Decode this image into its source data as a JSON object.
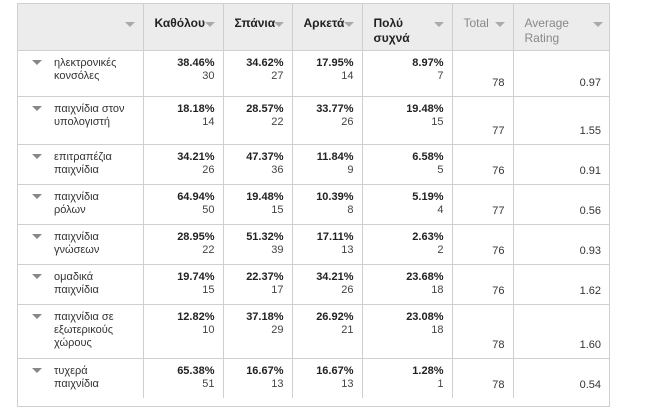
{
  "columns": [
    {
      "label": "",
      "bold": false
    },
    {
      "label": "Καθόλου",
      "bold": true
    },
    {
      "label": "Σπάνια",
      "bold": true
    },
    {
      "label": "Αρκετά",
      "bold": true
    },
    {
      "label": "Πολύ συχνά",
      "bold": true
    },
    {
      "label": "Total",
      "bold": false
    },
    {
      "label": "Average Rating",
      "bold": false
    }
  ],
  "rows": [
    {
      "label": "ηλεκτρονικές κονσόλες",
      "cells": [
        [
          "38.46%",
          "30"
        ],
        [
          "34.62%",
          "27"
        ],
        [
          "17.95%",
          "14"
        ],
        [
          "8.97%",
          "7"
        ]
      ],
      "total": "78",
      "rating": "0.97"
    },
    {
      "label": "παιχνίδια στον υπολογιστή",
      "cells": [
        [
          "18.18%",
          "14"
        ],
        [
          "28.57%",
          "22"
        ],
        [
          "33.77%",
          "26"
        ],
        [
          "19.48%",
          "15"
        ]
      ],
      "total": "77",
      "rating": "1.55"
    },
    {
      "label": "επιτραπέζια παιχνίδια",
      "cells": [
        [
          "34.21%",
          "26"
        ],
        [
          "47.37%",
          "36"
        ],
        [
          "11.84%",
          "9"
        ],
        [
          "6.58%",
          "5"
        ]
      ],
      "total": "76",
      "rating": "0.91"
    },
    {
      "label": "παιχνίδια ρόλων",
      "cells": [
        [
          "64.94%",
          "50"
        ],
        [
          "19.48%",
          "15"
        ],
        [
          "10.39%",
          "8"
        ],
        [
          "5.19%",
          "4"
        ]
      ],
      "total": "77",
      "rating": "0.56"
    },
    {
      "label": "παιχνίδια γνώσεων",
      "cells": [
        [
          "28.95%",
          "22"
        ],
        [
          "51.32%",
          "39"
        ],
        [
          "17.11%",
          "13"
        ],
        [
          "2.63%",
          "2"
        ]
      ],
      "total": "76",
      "rating": "0.93"
    },
    {
      "label": "ομαδικά παιχνίδια",
      "cells": [
        [
          "19.74%",
          "15"
        ],
        [
          "22.37%",
          "17"
        ],
        [
          "34.21%",
          "26"
        ],
        [
          "23.68%",
          "18"
        ]
      ],
      "total": "76",
      "rating": "1.62"
    },
    {
      "label": "παιχνίδια σε εξωτερικούς χώρους",
      "cells": [
        [
          "12.82%",
          "10"
        ],
        [
          "37.18%",
          "29"
        ],
        [
          "26.92%",
          "21"
        ],
        [
          "23.08%",
          "18"
        ]
      ],
      "total": "78",
      "rating": "1.60"
    },
    {
      "label": "τυχερά παιχνίδια",
      "cells": [
        [
          "65.38%",
          "51"
        ],
        [
          "16.67%",
          "13"
        ],
        [
          "16.67%",
          "13"
        ],
        [
          "1.28%",
          "1"
        ]
      ],
      "total": "78",
      "rating": "0.54"
    }
  ]
}
